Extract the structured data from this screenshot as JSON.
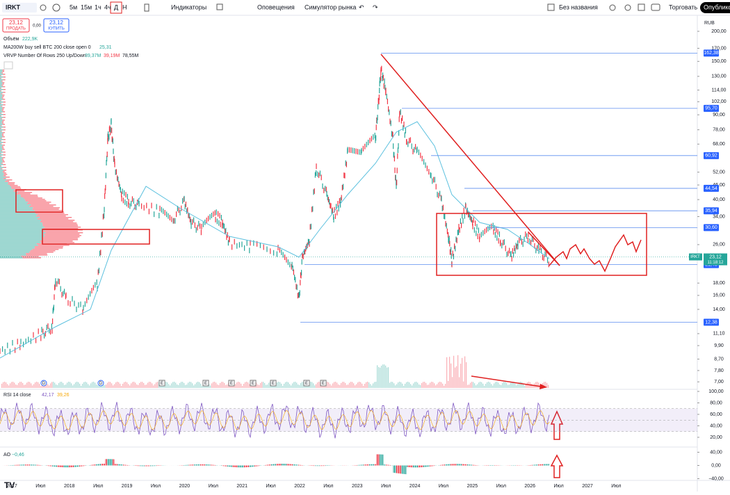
{
  "toolbar": {
    "symbol": "IRKT",
    "intervals": [
      "5м",
      "15м",
      "1ч",
      "4ч",
      "Д",
      "Н"
    ],
    "indicators": "Индикаторы",
    "alerts": "Оповещения",
    "replay": "Симулятор рынка",
    "layout_name": "Без названия",
    "trade": "Торговать",
    "publish": "Опубликовать"
  },
  "order": {
    "sell_price": "23,12",
    "sell": "ПРОДАТЬ",
    "spread": "0,00",
    "buy_price": "23,12",
    "buy": "КУПИТЬ"
  },
  "legend": {
    "volume_label": "Объём",
    "volume_value": "222,9K",
    "ma_label": "MA200W buy sell BTC 200 close open 0",
    "ma_value": "25,31",
    "vrvp_label": "VRVP Number Of Rows 250 Up/Down",
    "vrvp_up": "39,37M",
    "vrvp_down": "39,19M",
    "vrvp_total": "78,55M"
  },
  "price_axis": {
    "currency": "RUB",
    "ticks": [
      {
        "value": 200,
        "label": "200,00"
      },
      {
        "value": 170,
        "label": "170,00"
      },
      {
        "value": 150,
        "label": "150,00"
      },
      {
        "value": 130,
        "label": "130,00"
      },
      {
        "value": 114,
        "label": "114,00"
      },
      {
        "value": 102,
        "label": "102,00"
      },
      {
        "value": 90,
        "label": "90,00"
      },
      {
        "value": 78,
        "label": "78,00"
      },
      {
        "value": 68,
        "label": "68,00"
      },
      {
        "value": 52,
        "label": "52,00"
      },
      {
        "value": 46,
        "label": "46,00"
      },
      {
        "value": 40,
        "label": "40,00"
      },
      {
        "value": 34,
        "label": "34,00"
      },
      {
        "value": 26,
        "label": "26,00"
      },
      {
        "value": 18,
        "label": "18,00"
      },
      {
        "value": 16,
        "label": "16,00"
      },
      {
        "value": 14,
        "label": "14,00"
      },
      {
        "value": 11.1,
        "label": "11,10"
      },
      {
        "value": 9.9,
        "label": "9,90"
      },
      {
        "value": 8.7,
        "label": "8,70"
      },
      {
        "value": 7.8,
        "label": "7,80"
      },
      {
        "value": 7,
        "label": "7,00"
      }
    ]
  },
  "levels": [
    {
      "value": 162.38,
      "label": "162,38"
    },
    {
      "value": 95.7,
      "label": "95,70"
    },
    {
      "value": 60.92,
      "label": "60,92"
    },
    {
      "value": 44.54,
      "label": "44,54"
    },
    {
      "value": 35.94,
      "label": "35,94"
    },
    {
      "value": 30.6,
      "label": "30,60"
    },
    {
      "value": 21.48,
      "label": "21,48"
    },
    {
      "value": 12.38,
      "label": "12,38"
    }
  ],
  "last_price": {
    "symbol": "IRKT",
    "value": 23.12,
    "label": "23,12",
    "timer": "11:18:12"
  },
  "rsi": {
    "label": "RSI 14 close",
    "value": "42,17",
    "ma_value": "39,26",
    "ticks": [
      {
        "value": 100,
        "label": "100,00"
      },
      {
        "value": 80,
        "label": "80,00"
      },
      {
        "value": 60,
        "label": "60,00"
      },
      {
        "value": 40,
        "label": "40,00"
      },
      {
        "value": 20,
        "label": "20,00"
      }
    ]
  },
  "ao": {
    "label": "AO",
    "value": "−0,46",
    "ticks": [
      {
        "value": 40,
        "label": "40,00"
      },
      {
        "value": 0,
        "label": "0,00"
      },
      {
        "value": -40,
        "label": "−40,00"
      }
    ]
  },
  "time_axis": [
    "2017",
    "Июл",
    "2018",
    "Июл",
    "2019",
    "Июл",
    "2020",
    "Июл",
    "2021",
    "Июл",
    "2022",
    "Июл",
    "2023",
    "Июл",
    "2024",
    "Июл",
    "2025",
    "Июл",
    "2026",
    "Июл",
    "2027",
    "Июл"
  ],
  "events": [
    "D",
    "D",
    "E",
    "E",
    "E",
    "E",
    "E",
    "E",
    "E"
  ]
}
